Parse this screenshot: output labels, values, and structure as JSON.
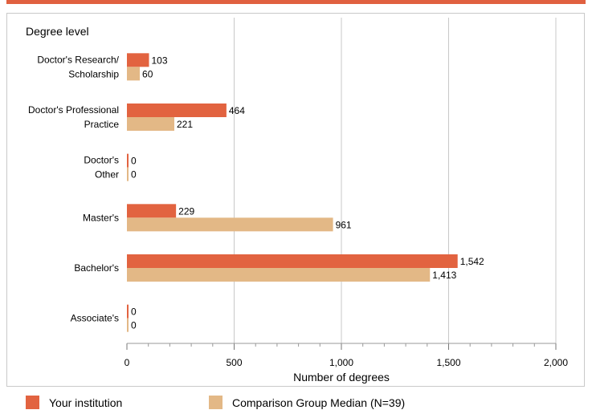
{
  "colors": {
    "accent_bar": "#e06040",
    "institution": "#e26340",
    "comparison": "#e3b886",
    "grid": "#c8c8c8",
    "frame": "#c9c9c9"
  },
  "legend": [
    {
      "label": "Your institution",
      "color": "#e26340"
    },
    {
      "label": "Comparison Group Median (N=39)",
      "color": "#e3b886"
    }
  ],
  "chart_data": {
    "type": "bar",
    "orientation": "horizontal",
    "title": "",
    "ylabel": "Degree level",
    "xlabel": "Number of degrees",
    "xlim": [
      0,
      2000
    ],
    "xticks": [
      0,
      500,
      1000,
      1500,
      2000
    ],
    "xtick_labels": [
      "0",
      "500",
      "1,000",
      "1,500",
      "2,000"
    ],
    "grid": true,
    "legend_position": "bottom",
    "categories": [
      [
        "Doctor's Research/",
        "Scholarship"
      ],
      [
        "Doctor's Professional",
        "Practice"
      ],
      [
        "Doctor's",
        "Other"
      ],
      [
        "Master's"
      ],
      [
        "Bachelor's"
      ],
      [
        "Associate's"
      ]
    ],
    "series": [
      {
        "name": "Your institution",
        "values": [
          103,
          464,
          0,
          229,
          1542,
          0
        ],
        "labels": [
          "103",
          "464",
          "0",
          "229",
          "1,542",
          "0"
        ]
      },
      {
        "name": "Comparison Group Median (N=39)",
        "values": [
          60,
          221,
          0,
          961,
          1413,
          0
        ],
        "labels": [
          "60",
          "221",
          "0",
          "961",
          "1,413",
          "0"
        ]
      }
    ]
  }
}
